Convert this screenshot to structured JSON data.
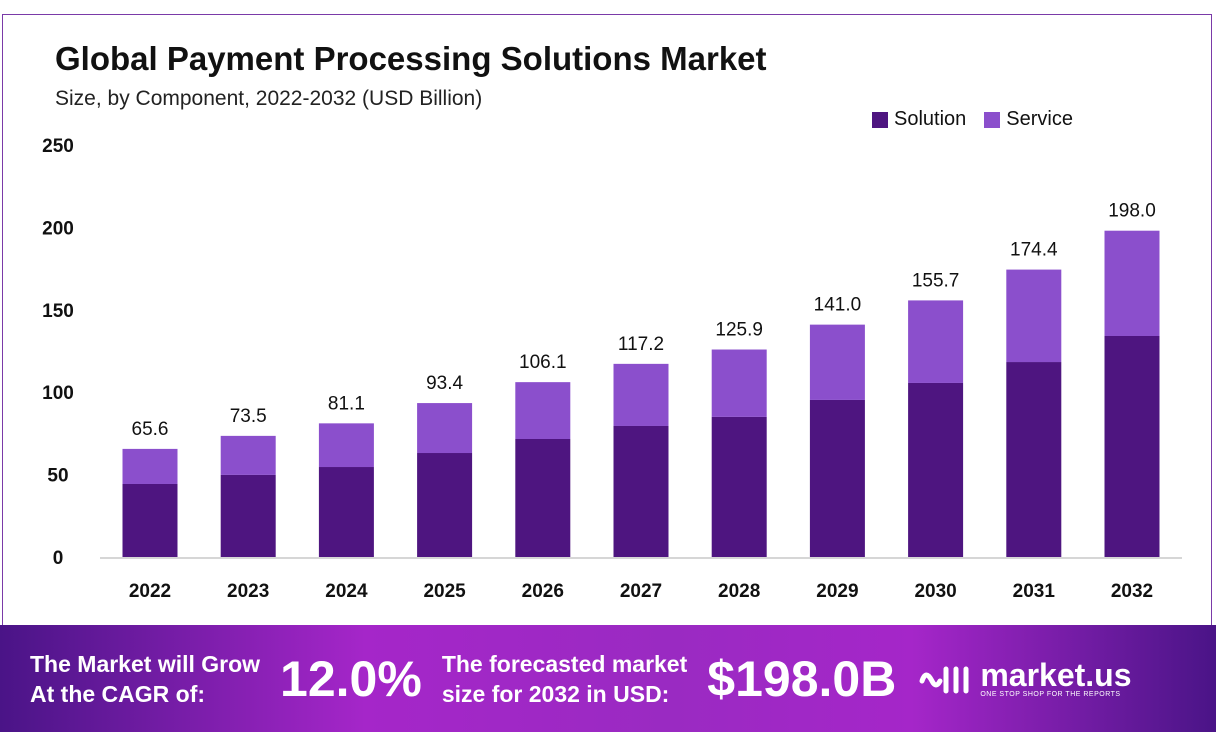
{
  "chart_data": {
    "type": "bar",
    "stacked": true,
    "title": "Global Payment Processing Solutions Market",
    "subtitle": "Size, by Component, 2022-2032 (USD Billion)",
    "categories": [
      "2022",
      "2023",
      "2024",
      "2025",
      "2026",
      "2027",
      "2028",
      "2029",
      "2030",
      "2031",
      "2032"
    ],
    "series": [
      {
        "name": "Solution",
        "color": "#4e1580",
        "values": [
          44.3,
          49.8,
          54.6,
          63.1,
          71.6,
          79.5,
          85.0,
          95.3,
          105.6,
          118.3,
          134.1
        ]
      },
      {
        "name": "Service",
        "color": "#8b4fcc",
        "values": [
          21.3,
          23.7,
          26.5,
          30.3,
          34.5,
          37.7,
          40.9,
          45.7,
          50.1,
          56.1,
          63.9
        ]
      }
    ],
    "totals": [
      "65.6",
      "73.5",
      "81.1",
      "93.4",
      "106.1",
      "117.2",
      "125.9",
      "141.0",
      "155.7",
      "174.4",
      "198.0"
    ],
    "yticks": [
      "0",
      "50",
      "100",
      "150",
      "200",
      "250"
    ],
    "ylim": [
      0,
      250
    ],
    "grid": false,
    "legend": "top-right"
  },
  "footer": {
    "cagr_label_1": "The Market will Grow",
    "cagr_label_2": "At the CAGR of:",
    "cagr_value": "12.0%",
    "forecast_label_1": "The forecasted market",
    "forecast_label_2": "size for 2032 in USD:",
    "forecast_value": "$198.0B",
    "logo_name": "market.us",
    "logo_tagline": "ONE STOP SHOP FOR THE REPORTS"
  }
}
